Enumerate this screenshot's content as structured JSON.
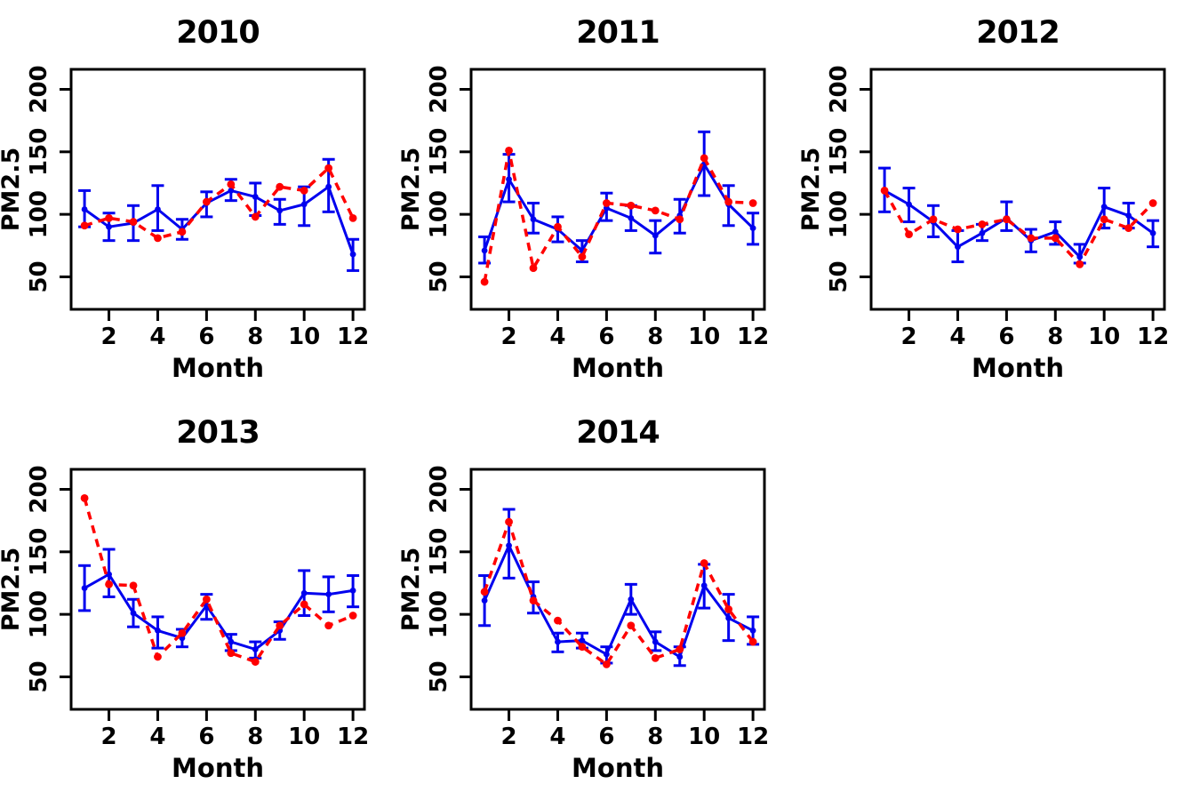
{
  "figure": {
    "background": "#FFFFFF",
    "axis_color": "#000000",
    "blue_series_color": "#0000EE",
    "red_series_color": "#FF0000"
  },
  "chart_data": [
    {
      "type": "line",
      "title": "2010",
      "xlabel": "Month",
      "ylabel": "PM2.5",
      "x": [
        1,
        2,
        3,
        4,
        5,
        6,
        7,
        8,
        9,
        10,
        11,
        12
      ],
      "xticks": [
        2,
        4,
        6,
        8,
        10,
        12
      ],
      "yticks": [
        50,
        100,
        150,
        200
      ],
      "xlim": [
        0.45,
        12.47
      ],
      "ylim": [
        24,
        216
      ],
      "grid": false,
      "legend": "none",
      "series": [
        {
          "name": "blue-solid",
          "color": "#0000EE",
          "line": "solid",
          "marker": "circle",
          "values": [
            104,
            90,
            93,
            104,
            88,
            109,
            119,
            114,
            103,
            108,
            122,
            68
          ],
          "error_lower": [
            90,
            79,
            79,
            87,
            80,
            98,
            111,
            99,
            92,
            91,
            102,
            55
          ],
          "error_upper": [
            119,
            101,
            107,
            123,
            96,
            118,
            128,
            125,
            112,
            122,
            144,
            80
          ]
        },
        {
          "name": "red-dashed",
          "color": "#FF0000",
          "line": "dashed",
          "marker": "circle",
          "values": [
            91,
            97,
            94,
            81,
            86,
            110,
            124,
            98,
            122,
            119,
            137,
            97
          ]
        }
      ]
    },
    {
      "type": "line",
      "title": "2011",
      "xlabel": "Month",
      "ylabel": "PM2.5",
      "x": [
        1,
        2,
        3,
        4,
        5,
        6,
        7,
        8,
        9,
        10,
        11,
        12
      ],
      "xticks": [
        2,
        4,
        6,
        8,
        10,
        12
      ],
      "yticks": [
        50,
        100,
        150,
        200
      ],
      "xlim": [
        0.45,
        12.47
      ],
      "ylim": [
        24,
        216
      ],
      "grid": false,
      "legend": "none",
      "series": [
        {
          "name": "blue-solid",
          "color": "#0000EE",
          "line": "solid",
          "marker": "circle",
          "values": [
            71,
            128,
            96,
            88,
            71,
            105,
            97,
            83,
            99,
            140,
            108,
            89
          ],
          "error_lower": [
            61,
            110,
            85,
            78,
            62,
            95,
            87,
            69,
            85,
            115,
            91,
            76
          ],
          "error_upper": [
            82,
            148,
            109,
            98,
            79,
            117,
            107,
            95,
            112,
            166,
            123,
            101
          ]
        },
        {
          "name": "red-dashed",
          "color": "#FF0000",
          "line": "dashed",
          "marker": "circle",
          "values": [
            46,
            151,
            57,
            90,
            66,
            109,
            107,
            103,
            96,
            145,
            110,
            109
          ]
        }
      ]
    },
    {
      "type": "line",
      "title": "2012",
      "xlabel": "Month",
      "ylabel": "PM2.5",
      "x": [
        1,
        2,
        3,
        4,
        5,
        6,
        7,
        8,
        9,
        10,
        11,
        12
      ],
      "xticks": [
        2,
        4,
        6,
        8,
        10,
        12
      ],
      "yticks": [
        50,
        100,
        150,
        200
      ],
      "xlim": [
        0.45,
        12.47
      ],
      "ylim": [
        24,
        216
      ],
      "grid": false,
      "legend": "none",
      "series": [
        {
          "name": "blue-solid",
          "color": "#0000EE",
          "line": "solid",
          "marker": "circle",
          "values": [
            119,
            108,
            94,
            74,
            85,
            97,
            79,
            86,
            66,
            106,
            99,
            85
          ],
          "error_lower": [
            102,
            94,
            82,
            62,
            79,
            87,
            70,
            76,
            61,
            89,
            89,
            74
          ],
          "error_upper": [
            137,
            121,
            107,
            87,
            92,
            110,
            88,
            94,
            76,
            121,
            109,
            95
          ]
        },
        {
          "name": "red-dashed",
          "color": "#FF0000",
          "line": "dashed",
          "marker": "circle",
          "values": [
            119,
            84,
            96,
            88,
            92,
            96,
            81,
            81,
            60,
            96,
            89,
            109
          ]
        }
      ]
    },
    {
      "type": "line",
      "title": "2013",
      "xlabel": "Month",
      "ylabel": "PM2.5",
      "x": [
        1,
        2,
        3,
        4,
        5,
        6,
        7,
        8,
        9,
        10,
        11,
        12
      ],
      "xticks": [
        2,
        4,
        6,
        8,
        10,
        12
      ],
      "yticks": [
        50,
        100,
        150,
        200
      ],
      "xlim": [
        0.45,
        12.47
      ],
      "ylim": [
        24,
        216
      ],
      "grid": false,
      "legend": "none",
      "series": [
        {
          "name": "blue-solid",
          "color": "#0000EE",
          "line": "solid",
          "marker": "circle",
          "values": [
            121,
            132,
            101,
            87,
            81,
            107,
            78,
            72,
            87,
            117,
            116,
            119
          ],
          "error_lower": [
            103,
            114,
            90,
            73,
            74,
            96,
            71,
            65,
            80,
            99,
            102,
            106
          ],
          "error_upper": [
            139,
            152,
            112,
            98,
            88,
            116,
            84,
            78,
            94,
            135,
            130,
            131
          ]
        },
        {
          "name": "red-dashed",
          "color": "#FF0000",
          "line": "dashed",
          "marker": "circle",
          "values": [
            193,
            124,
            123,
            66,
            85,
            112,
            69,
            62,
            91,
            108,
            91,
            99
          ]
        }
      ]
    },
    {
      "type": "line",
      "title": "2014",
      "xlabel": "Month",
      "ylabel": "PM2.5",
      "x": [
        1,
        2,
        3,
        4,
        5,
        6,
        7,
        8,
        9,
        10,
        11,
        12
      ],
      "xticks": [
        2,
        4,
        6,
        8,
        10,
        12
      ],
      "yticks": [
        50,
        100,
        150,
        200
      ],
      "xlim": [
        0.45,
        12.47
      ],
      "ylim": [
        24,
        216
      ],
      "grid": false,
      "legend": "none",
      "series": [
        {
          "name": "blue-solid",
          "color": "#0000EE",
          "line": "solid",
          "marker": "circle",
          "values": [
            111,
            155,
            114,
            78,
            79,
            68,
            112,
            78,
            66,
            123,
            97,
            87
          ],
          "error_lower": [
            91,
            129,
            101,
            70,
            73,
            61,
            100,
            71,
            59,
            105,
            79,
            76
          ],
          "error_upper": [
            131,
            184,
            126,
            85,
            85,
            74,
            124,
            86,
            74,
            140,
            116,
            98
          ]
        },
        {
          "name": "red-dashed",
          "color": "#FF0000",
          "line": "dashed",
          "marker": "circle",
          "values": [
            118,
            174,
            111,
            95,
            74,
            60,
            91,
            65,
            72,
            141,
            104,
            78
          ]
        }
      ]
    }
  ]
}
